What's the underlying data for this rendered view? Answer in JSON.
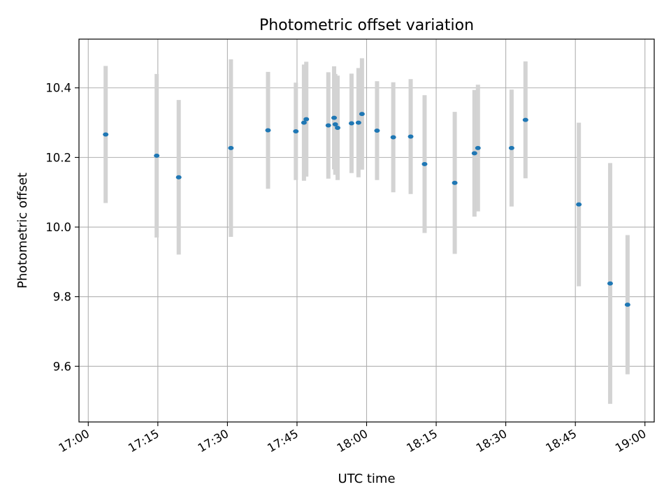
{
  "chart_data": {
    "type": "scatter",
    "title": "Photometric offset variation",
    "xlabel": "UTC time",
    "ylabel": "Photometric offset",
    "x_ticks": [
      "17:00",
      "17:15",
      "17:30",
      "17:45",
      "18:00",
      "18:15",
      "18:30",
      "18:45",
      "19:00"
    ],
    "y_ticks": [
      "9.6",
      "9.8",
      "10.0",
      "10.2",
      "10.4"
    ],
    "xlim": [
      "16:58",
      "19:02"
    ],
    "ylim": [
      9.44,
      10.54
    ],
    "grid": true,
    "colors": {
      "points": "#1f77b4",
      "errorbars": "#d3d3d3",
      "grid": "#b0b0b0"
    },
    "points": [
      {
        "x": "17:03:45",
        "y": 10.266,
        "err": 0.197
      },
      {
        "x": "17:14:45",
        "y": 10.205,
        "err": 0.235
      },
      {
        "x": "17:19:30",
        "y": 10.143,
        "err": 0.222
      },
      {
        "x": "17:30:45",
        "y": 10.227,
        "err": 0.255
      },
      {
        "x": "17:38:45",
        "y": 10.278,
        "err": 0.168
      },
      {
        "x": "17:44:45",
        "y": 10.275,
        "err": 0.14
      },
      {
        "x": "17:46:30",
        "y": 10.3,
        "err": 0.167
      },
      {
        "x": "17:47:00",
        "y": 10.31,
        "err": 0.165
      },
      {
        "x": "17:51:45",
        "y": 10.292,
        "err": 0.153
      },
      {
        "x": "17:53:00",
        "y": 10.314,
        "err": 0.148
      },
      {
        "x": "17:53:15",
        "y": 10.295,
        "err": 0.145
      },
      {
        "x": "17:53:45",
        "y": 10.285,
        "err": 0.15
      },
      {
        "x": "17:56:45",
        "y": 10.298,
        "err": 0.143
      },
      {
        "x": "17:58:15",
        "y": 10.3,
        "err": 0.157
      },
      {
        "x": "17:59:00",
        "y": 10.325,
        "err": 0.16
      },
      {
        "x": "18:02:15",
        "y": 10.277,
        "err": 0.142
      },
      {
        "x": "18:05:45",
        "y": 10.258,
        "err": 0.158
      },
      {
        "x": "18:09:30",
        "y": 10.26,
        "err": 0.165
      },
      {
        "x": "18:12:30",
        "y": 10.181,
        "err": 0.198
      },
      {
        "x": "18:19:00",
        "y": 10.127,
        "err": 0.204
      },
      {
        "x": "18:23:15",
        "y": 10.212,
        "err": 0.182
      },
      {
        "x": "18:24:00",
        "y": 10.227,
        "err": 0.182
      },
      {
        "x": "18:31:15",
        "y": 10.227,
        "err": 0.168
      },
      {
        "x": "18:34:15",
        "y": 10.308,
        "err": 0.168
      },
      {
        "x": "18:45:45",
        "y": 10.065,
        "err": 0.235
      },
      {
        "x": "18:52:30",
        "y": 9.838,
        "err": 0.346
      },
      {
        "x": "18:56:15",
        "y": 9.777,
        "err": 0.2
      }
    ]
  }
}
